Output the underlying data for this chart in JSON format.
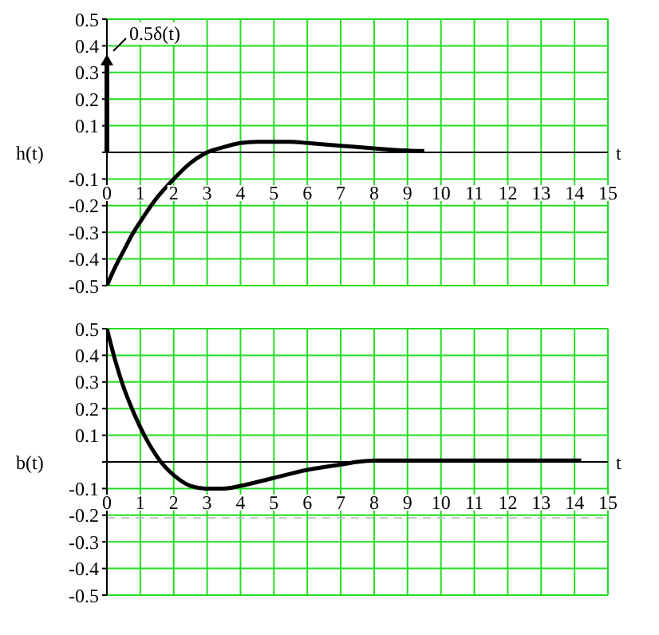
{
  "chart_data": [
    {
      "type": "line",
      "ylabel": "h(t)",
      "xlabel": "t",
      "xlim": [
        0,
        15
      ],
      "xticks": [
        0,
        1,
        2,
        3,
        4,
        5,
        6,
        7,
        8,
        9,
        10,
        11,
        12,
        13,
        14,
        15
      ],
      "ylim": [
        -0.5,
        0.5
      ],
      "yticks": [
        -0.5,
        -0.4,
        -0.3,
        -0.2,
        -0.1,
        {
          "value": 0,
          "label": null
        },
        0.1,
        0.2,
        0.3,
        0.4,
        0.5
      ],
      "grid": true,
      "marker": "none",
      "line_style": "solid",
      "x": [
        0,
        0.25,
        0.5,
        0.75,
        1,
        1.5,
        2,
        2.5,
        3,
        3.5,
        4,
        4.5,
        5,
        5.5,
        6,
        7,
        8,
        9,
        9.5
      ],
      "series": [
        {
          "color": "#000000",
          "values": [
            -0.5,
            -0.43,
            -0.37,
            -0.31,
            -0.26,
            -0.17,
            -0.1,
            -0.04,
            0,
            0.02,
            0.035,
            0.04,
            0.04,
            0.04,
            0.035,
            0.025,
            0.015,
            0.007,
            0.005
          ]
        }
      ],
      "annotations": [
        "0.5δ(t)"
      ]
    },
    {
      "type": "line",
      "ylabel": "b(t)",
      "xlabel": "t",
      "xlim": [
        0,
        15
      ],
      "xticks": [
        0,
        1,
        2,
        3,
        4,
        5,
        6,
        7,
        8,
        9,
        10,
        11,
        12,
        13,
        14,
        15
      ],
      "ylim": [
        -0.5,
        0.5
      ],
      "yticks": [
        -0.5,
        -0.4,
        -0.3,
        -0.2,
        -0.1,
        {
          "value": 0,
          "label": null
        },
        0.1,
        0.2,
        0.3,
        0.4,
        0.5
      ],
      "grid": true,
      "marker": "none",
      "line_style": "solid",
      "x": [
        0,
        0.25,
        0.5,
        0.75,
        1,
        1.25,
        1.5,
        1.75,
        2,
        2.5,
        3,
        3.5,
        4,
        5,
        6,
        7,
        7.5,
        8,
        9,
        10,
        11,
        12,
        13,
        14,
        14.2
      ],
      "series": [
        {
          "color": "#000000",
          "values": [
            0.5,
            0.38,
            0.28,
            0.2,
            0.13,
            0.07,
            0.02,
            -0.02,
            -0.05,
            -0.09,
            -0.1,
            -0.1,
            -0.09,
            -0.06,
            -0.03,
            -0.01,
            0,
            0.005,
            0.005,
            0.005,
            0.005,
            0.005,
            0.005,
            0.005,
            0.005
          ]
        }
      ],
      "ref_lines": [
        {
          "axis": "y",
          "value": -0.21,
          "color": "#c0c0c0",
          "line_style": "dashed"
        }
      ]
    }
  ]
}
